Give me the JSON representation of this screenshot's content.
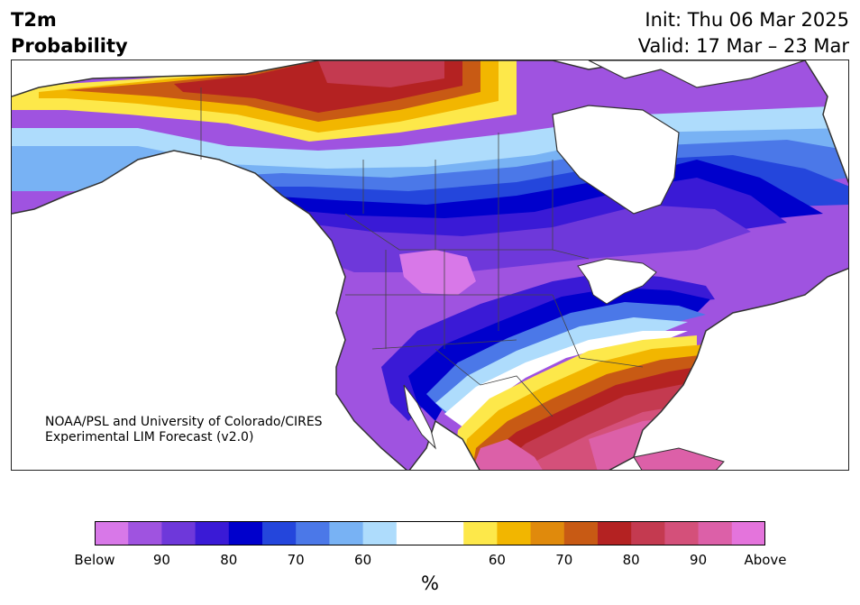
{
  "header": {
    "title_line1": "T2m",
    "title_line2": "Probability",
    "init_label": "Init: Thu 06 Mar 2025",
    "valid_label": "Valid: 17 Mar – 23 Mar"
  },
  "map": {
    "credit_line1": "NOAA/PSL and University of Colorado/CIRES",
    "credit_line2": "Experimental LIM Forecast (v2.0)"
  },
  "colorbar": {
    "unit": "%",
    "colors": [
      "#d878e8",
      "#9f53e0",
      "#6e38da",
      "#3a1ad6",
      "#0000cc",
      "#2446dc",
      "#4b78e8",
      "#78b2f4",
      "#aedcfc",
      "#ffffff",
      "#ffffff",
      "#fde84a",
      "#f2b600",
      "#e08a0c",
      "#c85a14",
      "#b42222",
      "#c43a50",
      "#d4507a",
      "#dc60a8",
      "#e474dc"
    ],
    "labels": [
      "Below",
      "90",
      "80",
      "70",
      "60",
      "60",
      "70",
      "80",
      "90",
      "Above"
    ],
    "label_positions": [
      0,
      2,
      4,
      6,
      8,
      12,
      14,
      16,
      18,
      20
    ]
  },
  "map_colors": {
    "ocean": "#ffffff",
    "land_outline": "#333333",
    "border": "#444444"
  }
}
